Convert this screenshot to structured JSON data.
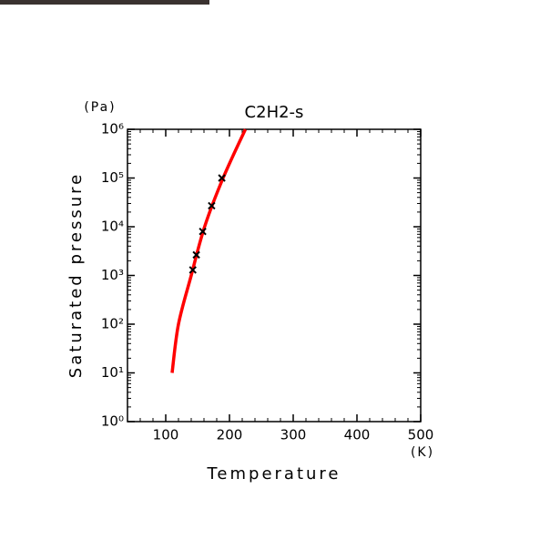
{
  "chart_data": {
    "type": "line",
    "title": "C2H2-s",
    "xlabel": "Temperature",
    "xunit": "(K)",
    "ylabel": "Saturated pressure",
    "yunit": "(Pa)",
    "xlim": [
      40,
      500
    ],
    "xticks": [
      100,
      200,
      300,
      400,
      500
    ],
    "ylim": [
      1,
      1000000
    ],
    "yticks": [
      {
        "value": 1,
        "label": "10⁰"
      },
      {
        "value": 10,
        "label": "10¹"
      },
      {
        "value": 100,
        "label": "10²"
      },
      {
        "value": 1000,
        "label": "10³"
      },
      {
        "value": 10000,
        "label": "10⁴"
      },
      {
        "value": 100000,
        "label": "10⁵"
      },
      {
        "value": 1000000,
        "label": "10⁶"
      }
    ],
    "ylog": true,
    "series": [
      {
        "mode": "line",
        "color": "#ff0000",
        "x": [
          110,
          120,
          140,
          161,
          190,
          225
        ],
        "values": [
          10,
          100,
          1000,
          10000,
          100000,
          1000000
        ]
      },
      {
        "mode": "markers",
        "color": "#000000",
        "x": [
          142.5,
          148,
          158,
          172,
          188
        ],
        "values": [
          1300,
          2650,
          8000,
          27000,
          100000
        ]
      }
    ]
  }
}
